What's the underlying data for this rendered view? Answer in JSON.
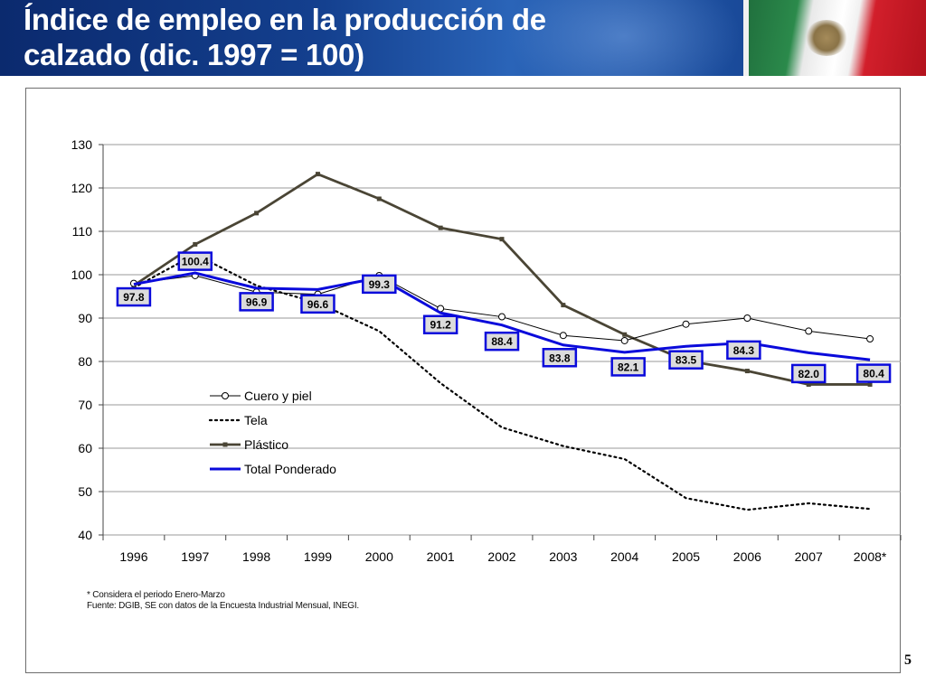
{
  "header": {
    "title_line1": "Índice de empleo en la producción de",
    "title_line2": "calzado (dic. 1997 = 100)"
  },
  "chart_data": {
    "type": "line",
    "x": [
      "1996",
      "1997",
      "1998",
      "1999",
      "2000",
      "2001",
      "2002",
      "2003",
      "2004",
      "2005",
      "2006",
      "2007",
      "2008*"
    ],
    "ylim": [
      40,
      130
    ],
    "yticks": [
      40,
      50,
      60,
      70,
      80,
      90,
      100,
      110,
      120,
      130
    ],
    "grid": true,
    "legend_position": "center-left",
    "series": [
      {
        "name": "Cuero y piel",
        "style": "solid-circle",
        "color": "#000000",
        "values": [
          98.0,
          99.8,
          96.0,
          95.5,
          99.8,
          92.2,
          90.3,
          86.0,
          84.8,
          88.6,
          90.0,
          87.0,
          85.2
        ]
      },
      {
        "name": "Tela",
        "style": "dotted",
        "color": "#000000",
        "values": [
          97.0,
          104.7,
          97.5,
          93.5,
          87.0,
          75.0,
          64.8,
          60.5,
          57.5,
          48.5,
          45.8,
          47.3,
          46.0
        ]
      },
      {
        "name": "Plástico",
        "style": "solid-square",
        "color": "#4a4535",
        "values": [
          97.5,
          107.0,
          114.2,
          123.2,
          117.5,
          110.8,
          108.2,
          93.0,
          86.2,
          80.2,
          77.8,
          74.7,
          74.7
        ]
      },
      {
        "name": "Total Ponderado",
        "style": "solid-thick",
        "color": "#0a0adb",
        "values": [
          97.8,
          100.4,
          96.9,
          96.6,
          99.3,
          91.2,
          88.4,
          83.8,
          82.1,
          83.5,
          84.3,
          82.0,
          80.4
        ]
      }
    ],
    "data_labels": [
      "97.8",
      "100.4",
      "96.9",
      "96.6",
      "99.3",
      "91.2",
      "88.4",
      "83.8",
      "82.1",
      "83.5",
      "84.3",
      "82.0",
      "80.4"
    ]
  },
  "notes": {
    "line1": "* Considera el periodo Enero-Marzo",
    "line2": "Fuente: DGIB, SE con datos de la Encuesta Industrial Mensual, INEGI."
  },
  "page_number": "5"
}
